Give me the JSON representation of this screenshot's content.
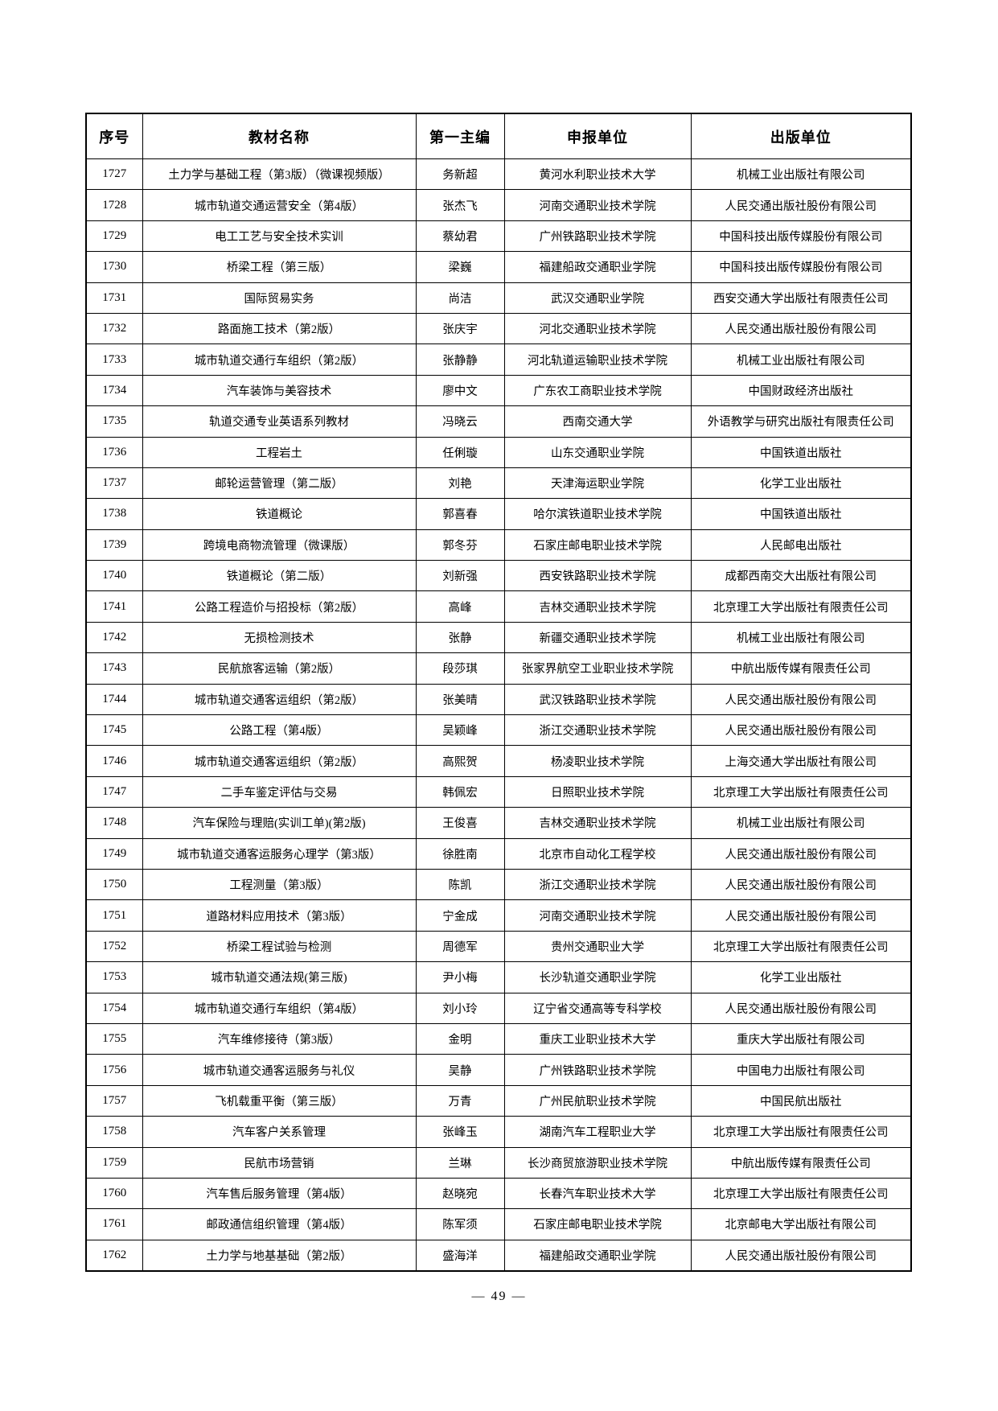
{
  "page": {
    "number_label": "— 49 —"
  },
  "table": {
    "headers": [
      "序号",
      "教材名称",
      "第一主编",
      "申报单位",
      "出版单位"
    ],
    "rows": [
      [
        "1727",
        "土力学与基础工程（第3版）（微课视频版）",
        "务新超",
        "黄河水利职业技术大学",
        "机械工业出版社有限公司"
      ],
      [
        "1728",
        "城市轨道交通运营安全（第4版）",
        "张杰飞",
        "河南交通职业技术学院",
        "人民交通出版社股份有限公司"
      ],
      [
        "1729",
        "电工工艺与安全技术实训",
        "蔡幼君",
        "广州铁路职业技术学院",
        "中国科技出版传媒股份有限公司"
      ],
      [
        "1730",
        "桥梁工程（第三版）",
        "梁巍",
        "福建船政交通职业学院",
        "中国科技出版传媒股份有限公司"
      ],
      [
        "1731",
        "国际贸易实务",
        "尚洁",
        "武汉交通职业学院",
        "西安交通大学出版社有限责任公司"
      ],
      [
        "1732",
        "路面施工技术（第2版）",
        "张庆宇",
        "河北交通职业技术学院",
        "人民交通出版社股份有限公司"
      ],
      [
        "1733",
        "城市轨道交通行车组织（第2版）",
        "张静静",
        "河北轨道运输职业技术学院",
        "机械工业出版社有限公司"
      ],
      [
        "1734",
        "汽车装饰与美容技术",
        "廖中文",
        "广东农工商职业技术学院",
        "中国财政经济出版社"
      ],
      [
        "1735",
        "轨道交通专业英语系列教材",
        "冯晓云",
        "西南交通大学",
        "外语教学与研究出版社有限责任公司"
      ],
      [
        "1736",
        "工程岩土",
        "任俐璇",
        "山东交通职业学院",
        "中国铁道出版社"
      ],
      [
        "1737",
        "邮轮运营管理（第二版）",
        "刘艳",
        "天津海运职业学院",
        "化学工业出版社"
      ],
      [
        "1738",
        "铁道概论",
        "郭喜春",
        "哈尔滨铁道职业技术学院",
        "中国铁道出版社"
      ],
      [
        "1739",
        "跨境电商物流管理（微课版）",
        "郭冬芬",
        "石家庄邮电职业技术学院",
        "人民邮电出版社"
      ],
      [
        "1740",
        "铁道概论（第二版）",
        "刘新强",
        "西安铁路职业技术学院",
        "成都西南交大出版社有限公司"
      ],
      [
        "1741",
        "公路工程造价与招投标（第2版）",
        "高峰",
        "吉林交通职业技术学院",
        "北京理工大学出版社有限责任公司"
      ],
      [
        "1742",
        "无损检测技术",
        "张静",
        "新疆交通职业技术学院",
        "机械工业出版社有限公司"
      ],
      [
        "1743",
        "民航旅客运输（第2版）",
        "段莎琪",
        "张家界航空工业职业技术学院",
        "中航出版传媒有限责任公司"
      ],
      [
        "1744",
        "城市轨道交通客运组织（第2版）",
        "张美晴",
        "武汉铁路职业技术学院",
        "人民交通出版社股份有限公司"
      ],
      [
        "1745",
        "公路工程（第4版）",
        "吴颖峰",
        "浙江交通职业技术学院",
        "人民交通出版社股份有限公司"
      ],
      [
        "1746",
        "城市轨道交通客运组织（第2版）",
        "高熙贺",
        "杨凌职业技术学院",
        "上海交通大学出版社有限公司"
      ],
      [
        "1747",
        "二手车鉴定评估与交易",
        "韩佩宏",
        "日照职业技术学院",
        "北京理工大学出版社有限责任公司"
      ],
      [
        "1748",
        "汽车保险与理赔(实训工单)(第2版)",
        "王俊喜",
        "吉林交通职业技术学院",
        "机械工业出版社有限公司"
      ],
      [
        "1749",
        "城市轨道交通客运服务心理学（第3版）",
        "徐胜南",
        "北京市自动化工程学校",
        "人民交通出版社股份有限公司"
      ],
      [
        "1750",
        "工程测量（第3版）",
        "陈凯",
        "浙江交通职业技术学院",
        "人民交通出版社股份有限公司"
      ],
      [
        "1751",
        "道路材料应用技术（第3版）",
        "宁金成",
        "河南交通职业技术学院",
        "人民交通出版社股份有限公司"
      ],
      [
        "1752",
        "桥梁工程试验与检测",
        "周德军",
        "贵州交通职业大学",
        "北京理工大学出版社有限责任公司"
      ],
      [
        "1753",
        "城市轨道交通法规(第三版)",
        "尹小梅",
        "长沙轨道交通职业学院",
        "化学工业出版社"
      ],
      [
        "1754",
        "城市轨道交通行车组织（第4版）",
        "刘小玲",
        "辽宁省交通高等专科学校",
        "人民交通出版社股份有限公司"
      ],
      [
        "1755",
        "汽车维修接待（第3版）",
        "金明",
        "重庆工业职业技术大学",
        "重庆大学出版社有限公司"
      ],
      [
        "1756",
        "城市轨道交通客运服务与礼仪",
        "吴静",
        "广州铁路职业技术学院",
        "中国电力出版社有限公司"
      ],
      [
        "1757",
        "飞机载重平衡（第三版）",
        "万青",
        "广州民航职业技术学院",
        "中国民航出版社"
      ],
      [
        "1758",
        "汽车客户关系管理",
        "张峰玉",
        "湖南汽车工程职业大学",
        "北京理工大学出版社有限责任公司"
      ],
      [
        "1759",
        "民航市场营销",
        "兰琳",
        "长沙商贸旅游职业技术学院",
        "中航出版传媒有限责任公司"
      ],
      [
        "1760",
        "汽车售后服务管理（第4版）",
        "赵晓宛",
        "长春汽车职业技术大学",
        "北京理工大学出版社有限责任公司"
      ],
      [
        "1761",
        "邮政通信组织管理（第4版）",
        "陈军须",
        "石家庄邮电职业技术学院",
        "北京邮电大学出版社有限公司"
      ],
      [
        "1762",
        "土力学与地基基础（第2版）",
        "盛海洋",
        "福建船政交通职业学院",
        "人民交通出版社股份有限公司"
      ]
    ]
  }
}
